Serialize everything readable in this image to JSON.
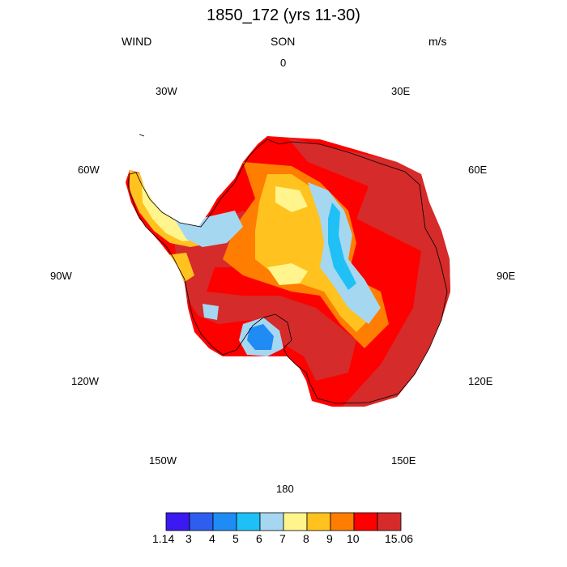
{
  "title": "1850_172 (yrs 11-30)",
  "left_string": "WIND",
  "center_string": "SON",
  "right_string": "m/s",
  "longitude_labels": {
    "n0": "0",
    "n30e": "30E",
    "n60e": "60E",
    "n90e": "90E",
    "n120e": "120E",
    "n150e": "150E",
    "n180": "180",
    "n150w": "150W",
    "n120w": "120W",
    "n90w": "90W",
    "n60w": "60W",
    "n30w": "30W"
  },
  "colorbar": {
    "labels": [
      "1.14",
      "3",
      "4",
      "5",
      "6",
      "7",
      "8",
      "9",
      "10",
      "15.06"
    ],
    "colors": [
      "#3a1af0",
      "#2e5ef0",
      "#1f8cf5",
      "#1ec0f5",
      "#a6d7f0",
      "#fff58c",
      "#ffc21f",
      "#ff7d00",
      "#ff0000",
      "#d52b2b"
    ]
  },
  "map_colors": {
    "coastline": "#000000"
  }
}
